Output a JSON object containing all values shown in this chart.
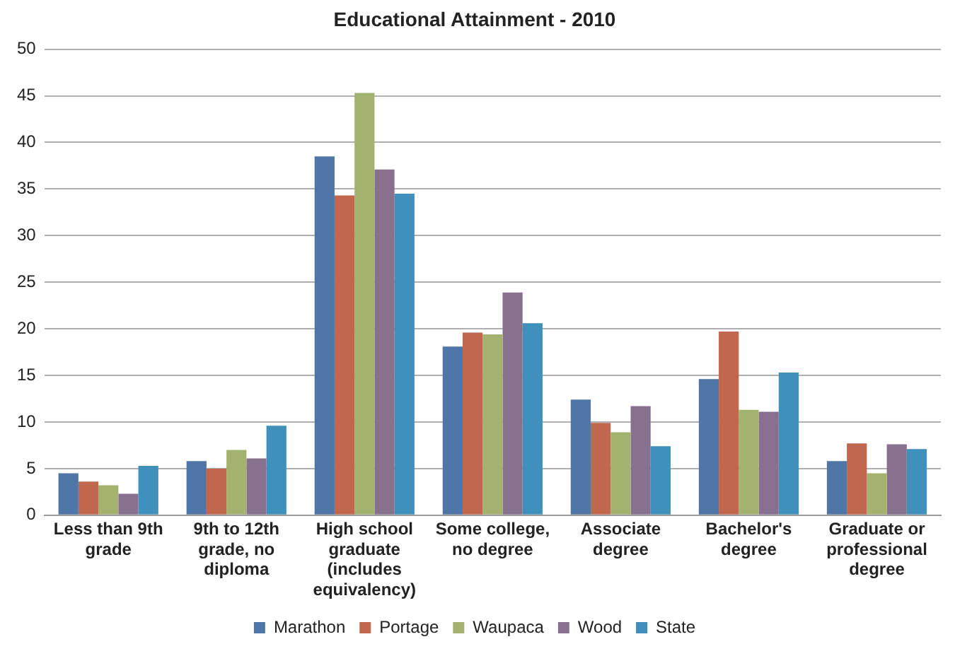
{
  "chart_data": {
    "type": "bar",
    "title": "Educational Attainment - 2010",
    "categories": [
      "Less than 9th grade",
      "9th to 12th grade, no diploma",
      "High school graduate (includes equivalency)",
      "Some college, no degree",
      "Associate degree",
      "Bachelor's degree",
      "Graduate or professional degree"
    ],
    "series": [
      {
        "name": "Marathon",
        "color": "#4f76a6",
        "values": [
          4.5,
          5.8,
          38.5,
          18.1,
          12.4,
          14.6,
          5.8
        ]
      },
      {
        "name": "Portage",
        "color": "#c0674e",
        "values": [
          3.6,
          5.0,
          34.3,
          19.6,
          9.9,
          19.7,
          7.7
        ]
      },
      {
        "name": "Waupaca",
        "color": "#a4b26f",
        "values": [
          3.2,
          7.0,
          45.3,
          19.4,
          8.9,
          11.3,
          4.5
        ]
      },
      {
        "name": "Wood",
        "color": "#88718f",
        "values": [
          2.3,
          6.1,
          37.1,
          23.9,
          11.7,
          11.1,
          7.6
        ]
      },
      {
        "name": "State",
        "color": "#3f91bb",
        "values": [
          5.3,
          9.6,
          34.5,
          20.6,
          7.4,
          15.3,
          7.1
        ]
      }
    ],
    "ylim": [
      0,
      50
    ],
    "yticks": [
      0,
      5,
      10,
      15,
      20,
      25,
      30,
      35,
      40,
      45,
      50
    ],
    "grid": "y",
    "legend": "bottom"
  }
}
